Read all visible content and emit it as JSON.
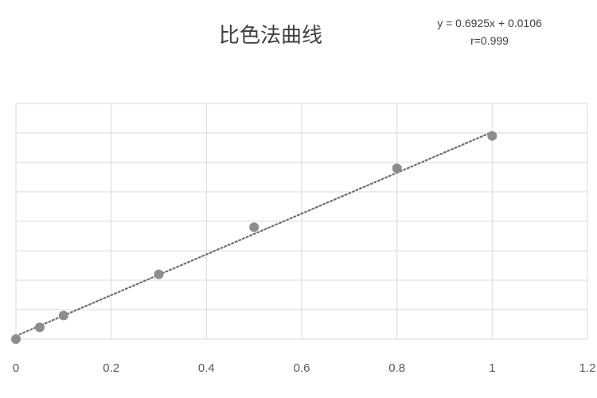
{
  "chart_data": {
    "type": "scatter",
    "title": "比色法曲线",
    "equation": "y = 0.6925x + 0.0106",
    "r_text": "r=0.999",
    "x": [
      0,
      0.05,
      0.1,
      0.3,
      0.5,
      0.8,
      1.0
    ],
    "y": [
      0.0,
      0.04,
      0.08,
      0.22,
      0.38,
      0.58,
      0.69
    ],
    "trendline": {
      "type": "linear",
      "style": "dotted",
      "slope": 0.6925,
      "intercept": 0.0106
    },
    "xlim": [
      0,
      1.2
    ],
    "ylim": [
      0,
      0.8
    ],
    "x_ticks": [
      "0",
      "0.2",
      "0.4",
      "0.6",
      "0.8",
      "1",
      "1.2"
    ],
    "y_tick_labels_visible": false,
    "grid": true,
    "marker_color": "#8c8c8c",
    "trendline_color": "#6f6f6f",
    "grid_color": "#d9d9d9"
  }
}
